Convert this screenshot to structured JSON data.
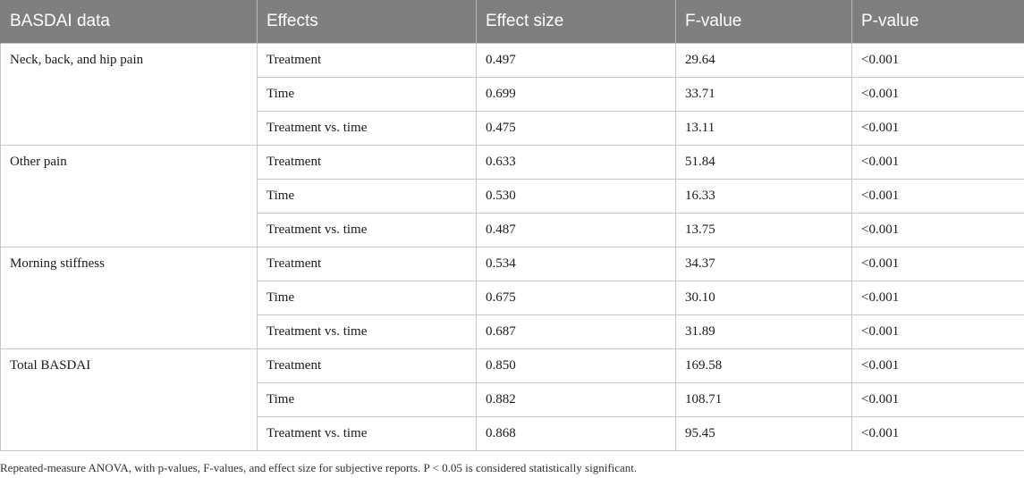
{
  "headers": [
    "BASDAI data",
    "Effects",
    "Effect size",
    "F-value",
    "P-value"
  ],
  "groups": [
    {
      "label": "Neck, back, and hip pain",
      "rows": [
        {
          "effect": "Treatment",
          "effect_size": "0.497",
          "f_value": "29.64",
          "p_value": "<0.001"
        },
        {
          "effect": "Time",
          "effect_size": "0.699",
          "f_value": "33.71",
          "p_value": "<0.001"
        },
        {
          "effect": "Treatment vs. time",
          "effect_size": "0.475",
          "f_value": "13.11",
          "p_value": "<0.001"
        }
      ]
    },
    {
      "label": "Other pain",
      "rows": [
        {
          "effect": "Treatment",
          "effect_size": "0.633",
          "f_value": "51.84",
          "p_value": "<0.001"
        },
        {
          "effect": "Time",
          "effect_size": "0.530",
          "f_value": "16.33",
          "p_value": "<0.001"
        },
        {
          "effect": "Treatment vs. time",
          "effect_size": "0.487",
          "f_value": "13.75",
          "p_value": "<0.001"
        }
      ]
    },
    {
      "label": "Morning stiffness",
      "rows": [
        {
          "effect": "Treatment",
          "effect_size": "0.534",
          "f_value": "34.37",
          "p_value": "<0.001"
        },
        {
          "effect": "Time",
          "effect_size": "0.675",
          "f_value": "30.10",
          "p_value": "<0.001"
        },
        {
          "effect": "Treatment vs. time",
          "effect_size": "0.687",
          "f_value": "31.89",
          "p_value": "<0.001"
        }
      ]
    },
    {
      "label": "Total BASDAI",
      "rows": [
        {
          "effect": "Treatment",
          "effect_size": "0.850",
          "f_value": "169.58",
          "p_value": "<0.001"
        },
        {
          "effect": "Time",
          "effect_size": "0.882",
          "f_value": "108.71",
          "p_value": "<0.001"
        },
        {
          "effect": "Treatment vs. time",
          "effect_size": "0.868",
          "f_value": "95.45",
          "p_value": "<0.001"
        }
      ]
    }
  ],
  "footnote": "Repeated-measure ANOVA, with p-values, F-values, and effect size for subjective reports. P < 0.05 is considered statistically significant.",
  "colors": {
    "header_background": "#7f7f7f",
    "header_text": "#ffffff",
    "grid_lines": "#c8c8c8"
  }
}
